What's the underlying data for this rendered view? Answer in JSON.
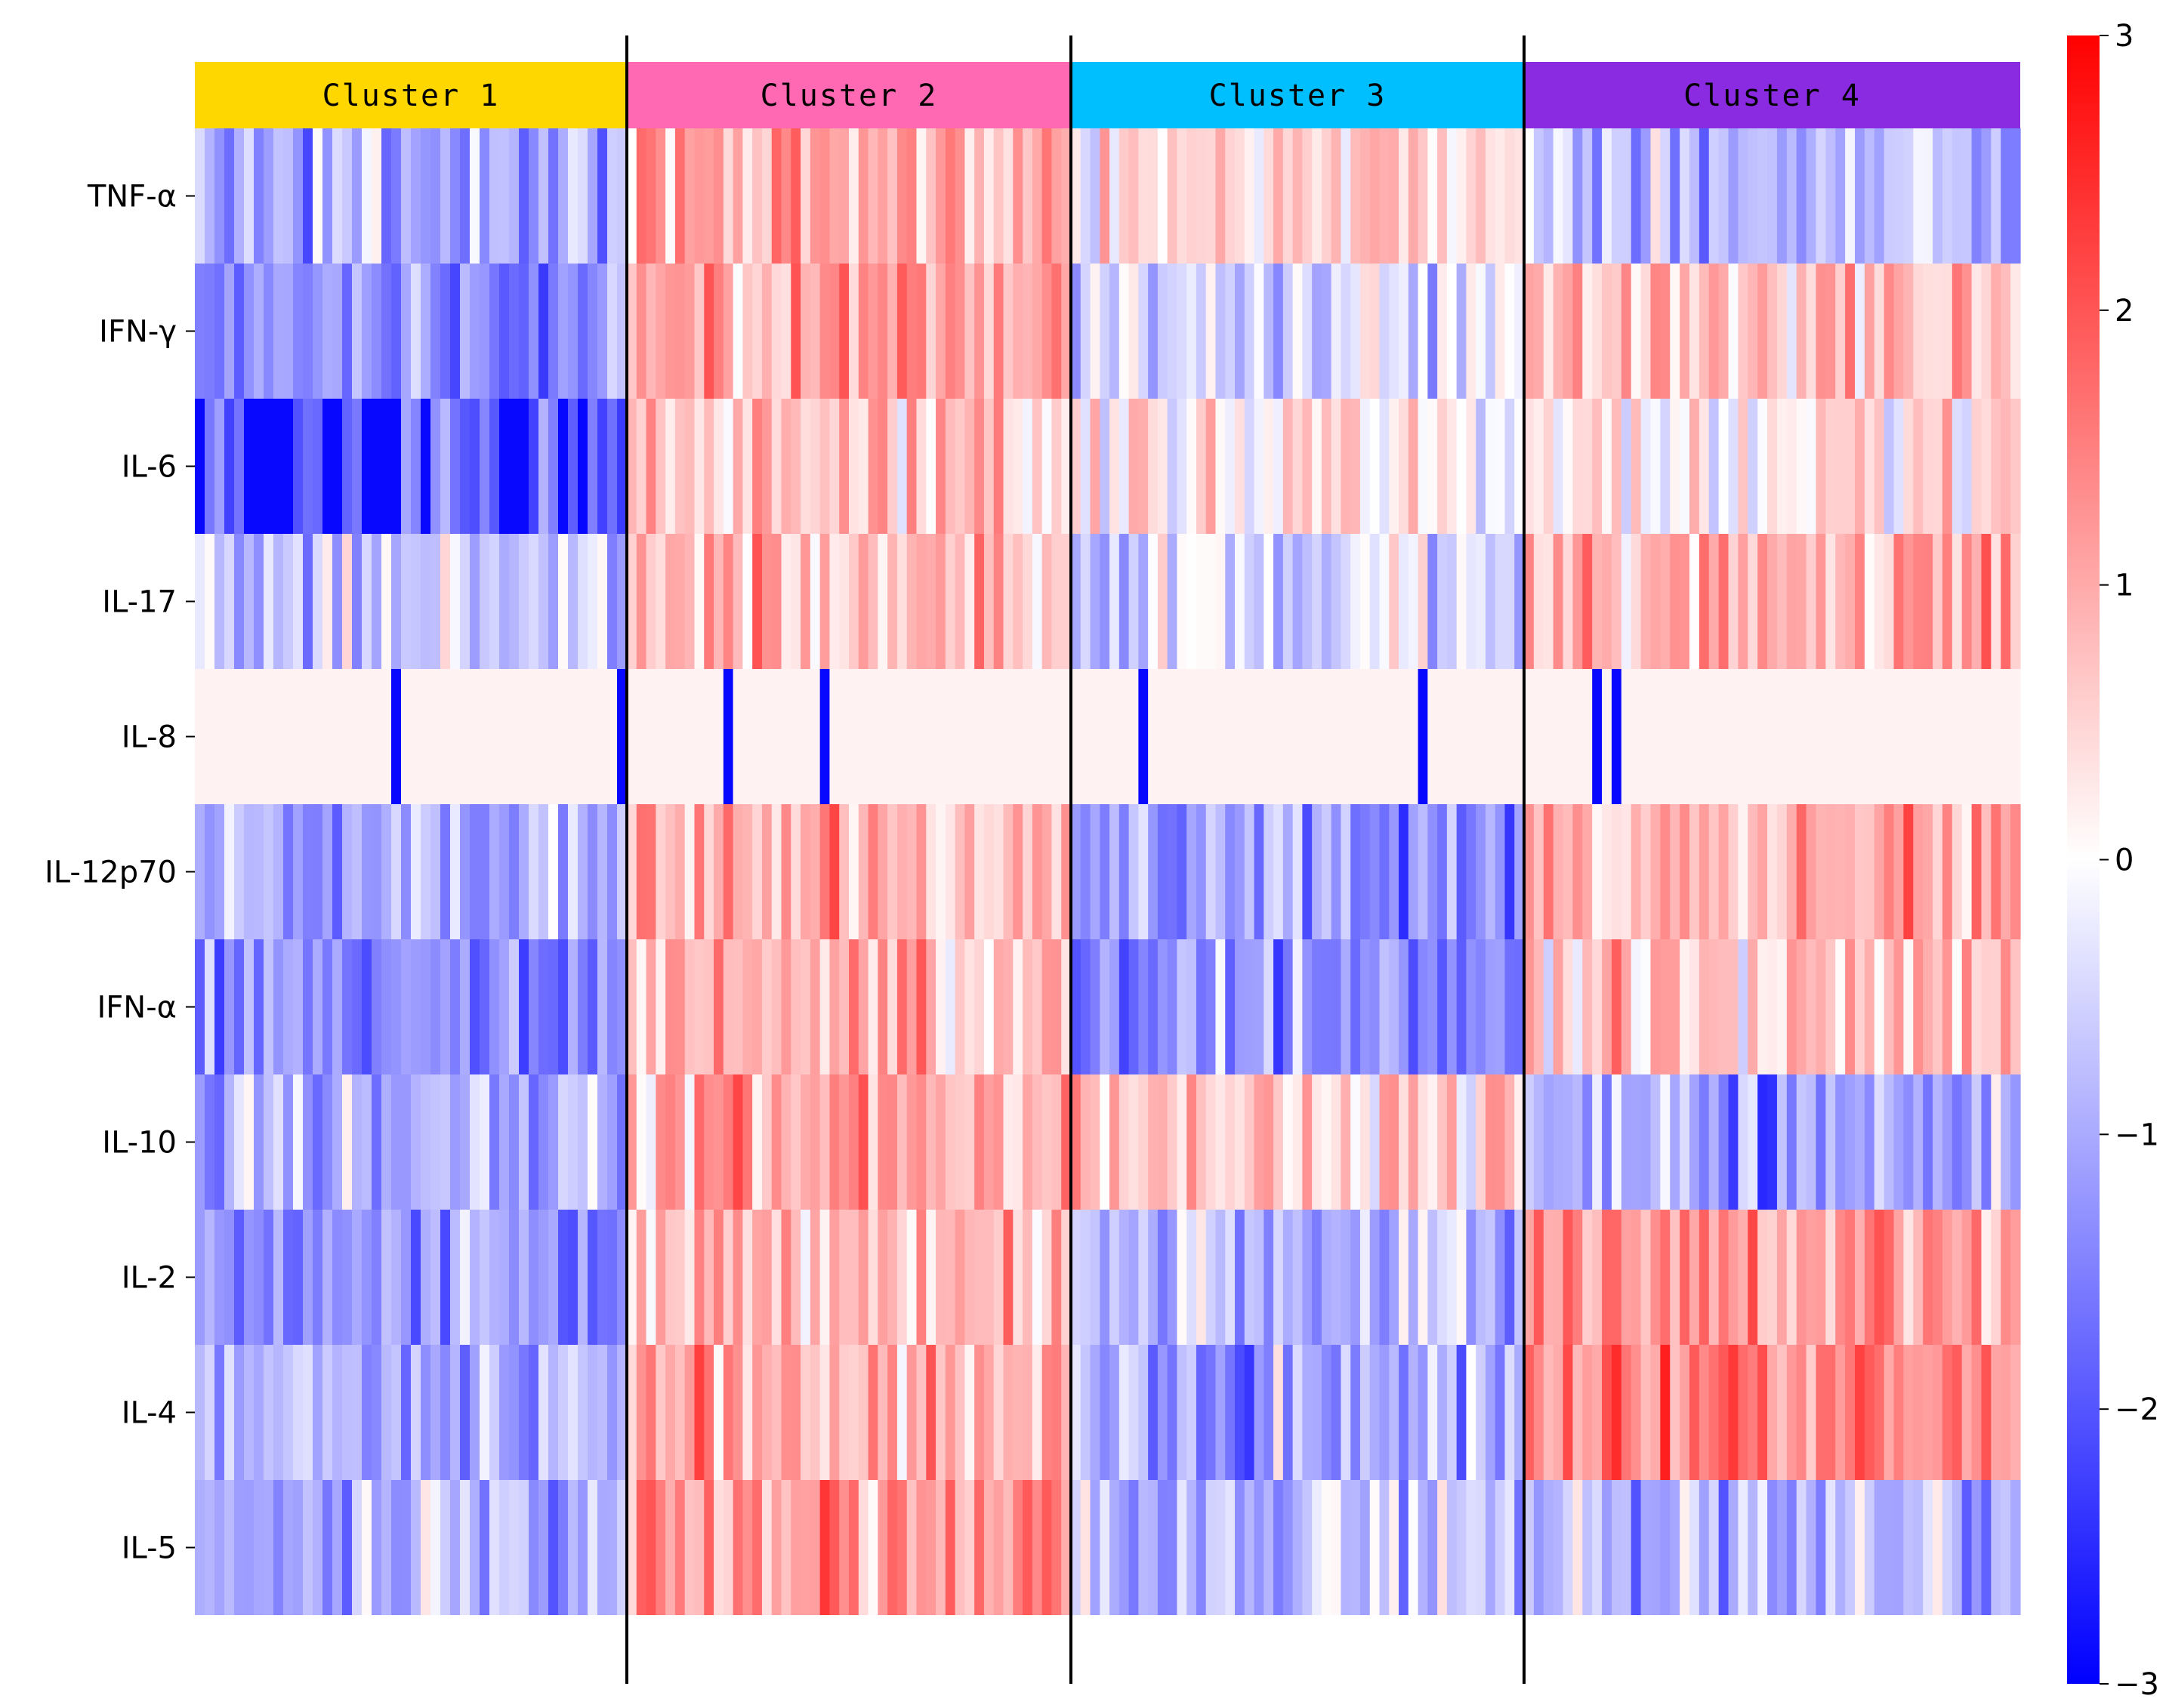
{
  "chart_data": {
    "type": "heatmap",
    "clusters": [
      {
        "name": "Cluster 1",
        "color": "#FFD700",
        "samples": 44
      },
      {
        "name": "Cluster 2",
        "color": "#FF69B4",
        "samples": 46
      },
      {
        "name": "Cluster 3",
        "color": "#00BFFF",
        "samples": 47
      },
      {
        "name": "Cluster 4",
        "color": "#8A2BE2",
        "samples": 51
      }
    ],
    "rows": [
      "TNF-α",
      "IFN-γ",
      "IL-6",
      "IL-17",
      "IL-8",
      "IL-12p70",
      "IFN-α",
      "IL-10",
      "IL-2",
      "IL-4",
      "IL-5"
    ],
    "row_means": [
      [
        -1.0,
        0.9,
        0.6,
        -0.8
      ],
      [
        -1.3,
        1.0,
        -0.4,
        0.8
      ],
      [
        -1.8,
        0.5,
        0.4,
        0.2
      ],
      [
        -0.6,
        0.8,
        -0.4,
        0.9
      ],
      [
        0.1,
        0.1,
        0.0,
        0.1
      ],
      [
        -0.8,
        0.8,
        -1.2,
        1.1
      ],
      [
        -1.4,
        1.0,
        -1.3,
        0.6
      ],
      [
        -1.0,
        1.0,
        0.7,
        -1.1
      ],
      [
        -1.2,
        0.9,
        -1.0,
        1.2
      ],
      [
        -1.0,
        1.0,
        -1.1,
        1.4
      ],
      [
        -0.9,
        1.2,
        -0.7,
        -0.8
      ]
    ],
    "vmin": -3,
    "vmax": 3,
    "colormap": [
      "#0000FF",
      "#FFFFFF",
      "#FF0000"
    ],
    "colorbar_ticks": [
      3,
      2,
      1,
      0,
      -1,
      -2,
      -3
    ]
  }
}
